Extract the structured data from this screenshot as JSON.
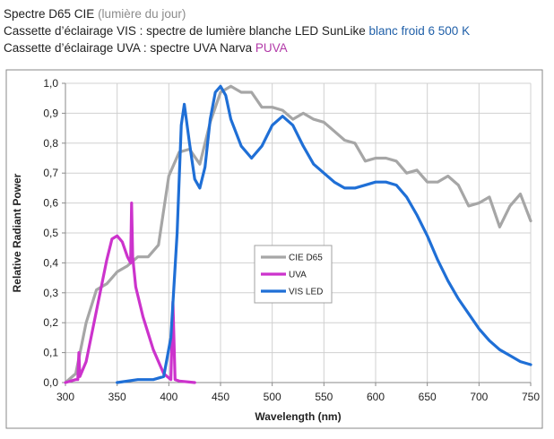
{
  "caption": {
    "line1": {
      "main": "Spectre D65 CIE",
      "highlight": "(lumière du jour)",
      "highlight_color": "#8c8c8c"
    },
    "line2": {
      "main": "Cassette d’éclairage VIS : spectre de lumière blanche LED SunLike",
      "highlight": "blanc froid 6 500 K",
      "highlight_color": "#1f5fa8"
    },
    "line3": {
      "main": "Cassette d’éclairage UVA : spectre UVA Narva",
      "highlight": "PUVA",
      "highlight_color": "#b23aa8"
    }
  },
  "chart_data": {
    "type": "line",
    "xlabel": "Wavelength (nm)",
    "ylabel": "Relative Radiant Power",
    "xlim": [
      300,
      750
    ],
    "ylim": [
      0,
      1.0
    ],
    "xticks": [
      "300",
      "350",
      "400",
      "450",
      "500",
      "550",
      "600",
      "650",
      "700",
      "750"
    ],
    "yticks": [
      "0,0",
      "0,1",
      "0,2",
      "0,3",
      "0,4",
      "0,5",
      "0,6",
      "0,7",
      "0,8",
      "0,9",
      "1,0"
    ],
    "grid": true,
    "legend_position": "center",
    "series": [
      {
        "name": "CIE D65",
        "color": "#a6a6a6",
        "points": [
          [
            300,
            0.0
          ],
          [
            310,
            0.03
          ],
          [
            320,
            0.2
          ],
          [
            330,
            0.31
          ],
          [
            340,
            0.33
          ],
          [
            350,
            0.37
          ],
          [
            360,
            0.39
          ],
          [
            370,
            0.42
          ],
          [
            380,
            0.42
          ],
          [
            390,
            0.46
          ],
          [
            400,
            0.69
          ],
          [
            410,
            0.77
          ],
          [
            420,
            0.78
          ],
          [
            430,
            0.73
          ],
          [
            440,
            0.87
          ],
          [
            450,
            0.97
          ],
          [
            460,
            0.99
          ],
          [
            470,
            0.97
          ],
          [
            480,
            0.97
          ],
          [
            490,
            0.92
          ],
          [
            500,
            0.92
          ],
          [
            510,
            0.91
          ],
          [
            520,
            0.88
          ],
          [
            530,
            0.9
          ],
          [
            540,
            0.88
          ],
          [
            550,
            0.87
          ],
          [
            560,
            0.84
          ],
          [
            570,
            0.81
          ],
          [
            580,
            0.8
          ],
          [
            590,
            0.74
          ],
          [
            600,
            0.75
          ],
          [
            610,
            0.75
          ],
          [
            620,
            0.74
          ],
          [
            630,
            0.7
          ],
          [
            640,
            0.71
          ],
          [
            650,
            0.67
          ],
          [
            660,
            0.67
          ],
          [
            670,
            0.69
          ],
          [
            680,
            0.66
          ],
          [
            690,
            0.59
          ],
          [
            700,
            0.6
          ],
          [
            710,
            0.62
          ],
          [
            720,
            0.52
          ],
          [
            730,
            0.59
          ],
          [
            740,
            0.63
          ],
          [
            750,
            0.54
          ]
        ]
      },
      {
        "name": "UVA",
        "color": "#cc33cc",
        "points": [
          [
            300,
            0.0
          ],
          [
            310,
            0.01
          ],
          [
            312,
            0.01
          ],
          [
            313,
            0.1
          ],
          [
            314,
            0.02
          ],
          [
            320,
            0.07
          ],
          [
            330,
            0.24
          ],
          [
            340,
            0.41
          ],
          [
            345,
            0.48
          ],
          [
            350,
            0.49
          ],
          [
            355,
            0.47
          ],
          [
            360,
            0.42
          ],
          [
            363,
            0.4
          ],
          [
            364,
            0.6
          ],
          [
            365,
            0.42
          ],
          [
            368,
            0.32
          ],
          [
            375,
            0.22
          ],
          [
            385,
            0.11
          ],
          [
            395,
            0.03
          ],
          [
            402,
            0.01
          ],
          [
            404,
            0.27
          ],
          [
            406,
            0.01
          ],
          [
            410,
            0.005
          ],
          [
            425,
            0.0
          ]
        ]
      },
      {
        "name": "VIS LED",
        "color": "#1f6fd6",
        "points": [
          [
            350,
            0.0
          ],
          [
            370,
            0.01
          ],
          [
            385,
            0.01
          ],
          [
            395,
            0.02
          ],
          [
            402,
            0.15
          ],
          [
            408,
            0.5
          ],
          [
            412,
            0.86
          ],
          [
            415,
            0.93
          ],
          [
            420,
            0.8
          ],
          [
            425,
            0.68
          ],
          [
            430,
            0.65
          ],
          [
            435,
            0.72
          ],
          [
            440,
            0.88
          ],
          [
            445,
            0.97
          ],
          [
            450,
            0.99
          ],
          [
            455,
            0.96
          ],
          [
            460,
            0.88
          ],
          [
            470,
            0.79
          ],
          [
            480,
            0.75
          ],
          [
            490,
            0.79
          ],
          [
            500,
            0.86
          ],
          [
            510,
            0.89
          ],
          [
            520,
            0.86
          ],
          [
            530,
            0.79
          ],
          [
            540,
            0.73
          ],
          [
            550,
            0.7
          ],
          [
            560,
            0.67
          ],
          [
            570,
            0.65
          ],
          [
            580,
            0.65
          ],
          [
            590,
            0.66
          ],
          [
            600,
            0.67
          ],
          [
            610,
            0.67
          ],
          [
            620,
            0.66
          ],
          [
            630,
            0.62
          ],
          [
            640,
            0.56
          ],
          [
            650,
            0.49
          ],
          [
            660,
            0.41
          ],
          [
            670,
            0.34
          ],
          [
            680,
            0.28
          ],
          [
            690,
            0.23
          ],
          [
            700,
            0.18
          ],
          [
            710,
            0.14
          ],
          [
            720,
            0.11
          ],
          [
            730,
            0.09
          ],
          [
            740,
            0.07
          ],
          [
            750,
            0.06
          ]
        ]
      }
    ]
  }
}
